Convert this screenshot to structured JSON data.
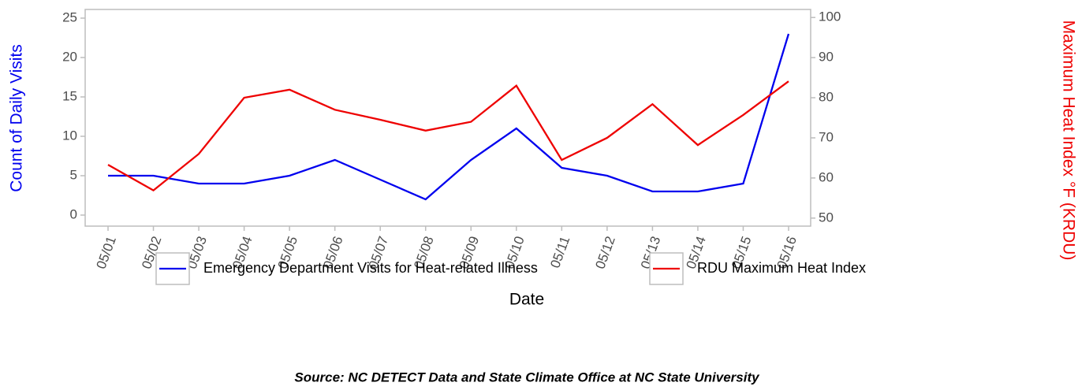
{
  "chart_data": {
    "type": "line",
    "x_label": "Date",
    "y_label": "Count of Daily Visits",
    "y2_label": "Maximum Heat Index °F (KRDU)",
    "source": "Source: NC DETECT Data and State Climate Office at NC State University",
    "categories": [
      "05/01",
      "05/02",
      "05/03",
      "05/04",
      "05/05",
      "05/06",
      "05/07",
      "05/08",
      "05/09",
      "05/10",
      "05/11",
      "05/12",
      "05/13",
      "05/14",
      "05/15",
      "05/16"
    ],
    "series": [
      {
        "name": "Emergency Department Visits for Heat-related Illness",
        "color": "#0000ee",
        "axis": "y",
        "values": [
          5,
          5,
          4,
          4,
          5,
          7,
          4.5,
          2,
          7,
          11,
          6,
          5,
          3,
          3,
          4,
          23
        ]
      },
      {
        "name": "RDU Maximum Heat Index",
        "color": "#ee0000",
        "axis": "y2",
        "values": [
          63.3,
          56.9,
          66,
          80,
          82,
          77,
          74.5,
          71.8,
          74,
          83,
          64.5,
          70,
          78.4,
          68.2,
          75.7,
          84.1
        ]
      }
    ],
    "ylim": [
      -1.4,
      26.1
    ],
    "yticks": [
      0,
      5,
      10,
      15,
      20,
      25
    ],
    "y2lim": [
      48,
      102
    ],
    "y2ticks": [
      50,
      60,
      70,
      80,
      90,
      100
    ],
    "legend": "bottom"
  }
}
